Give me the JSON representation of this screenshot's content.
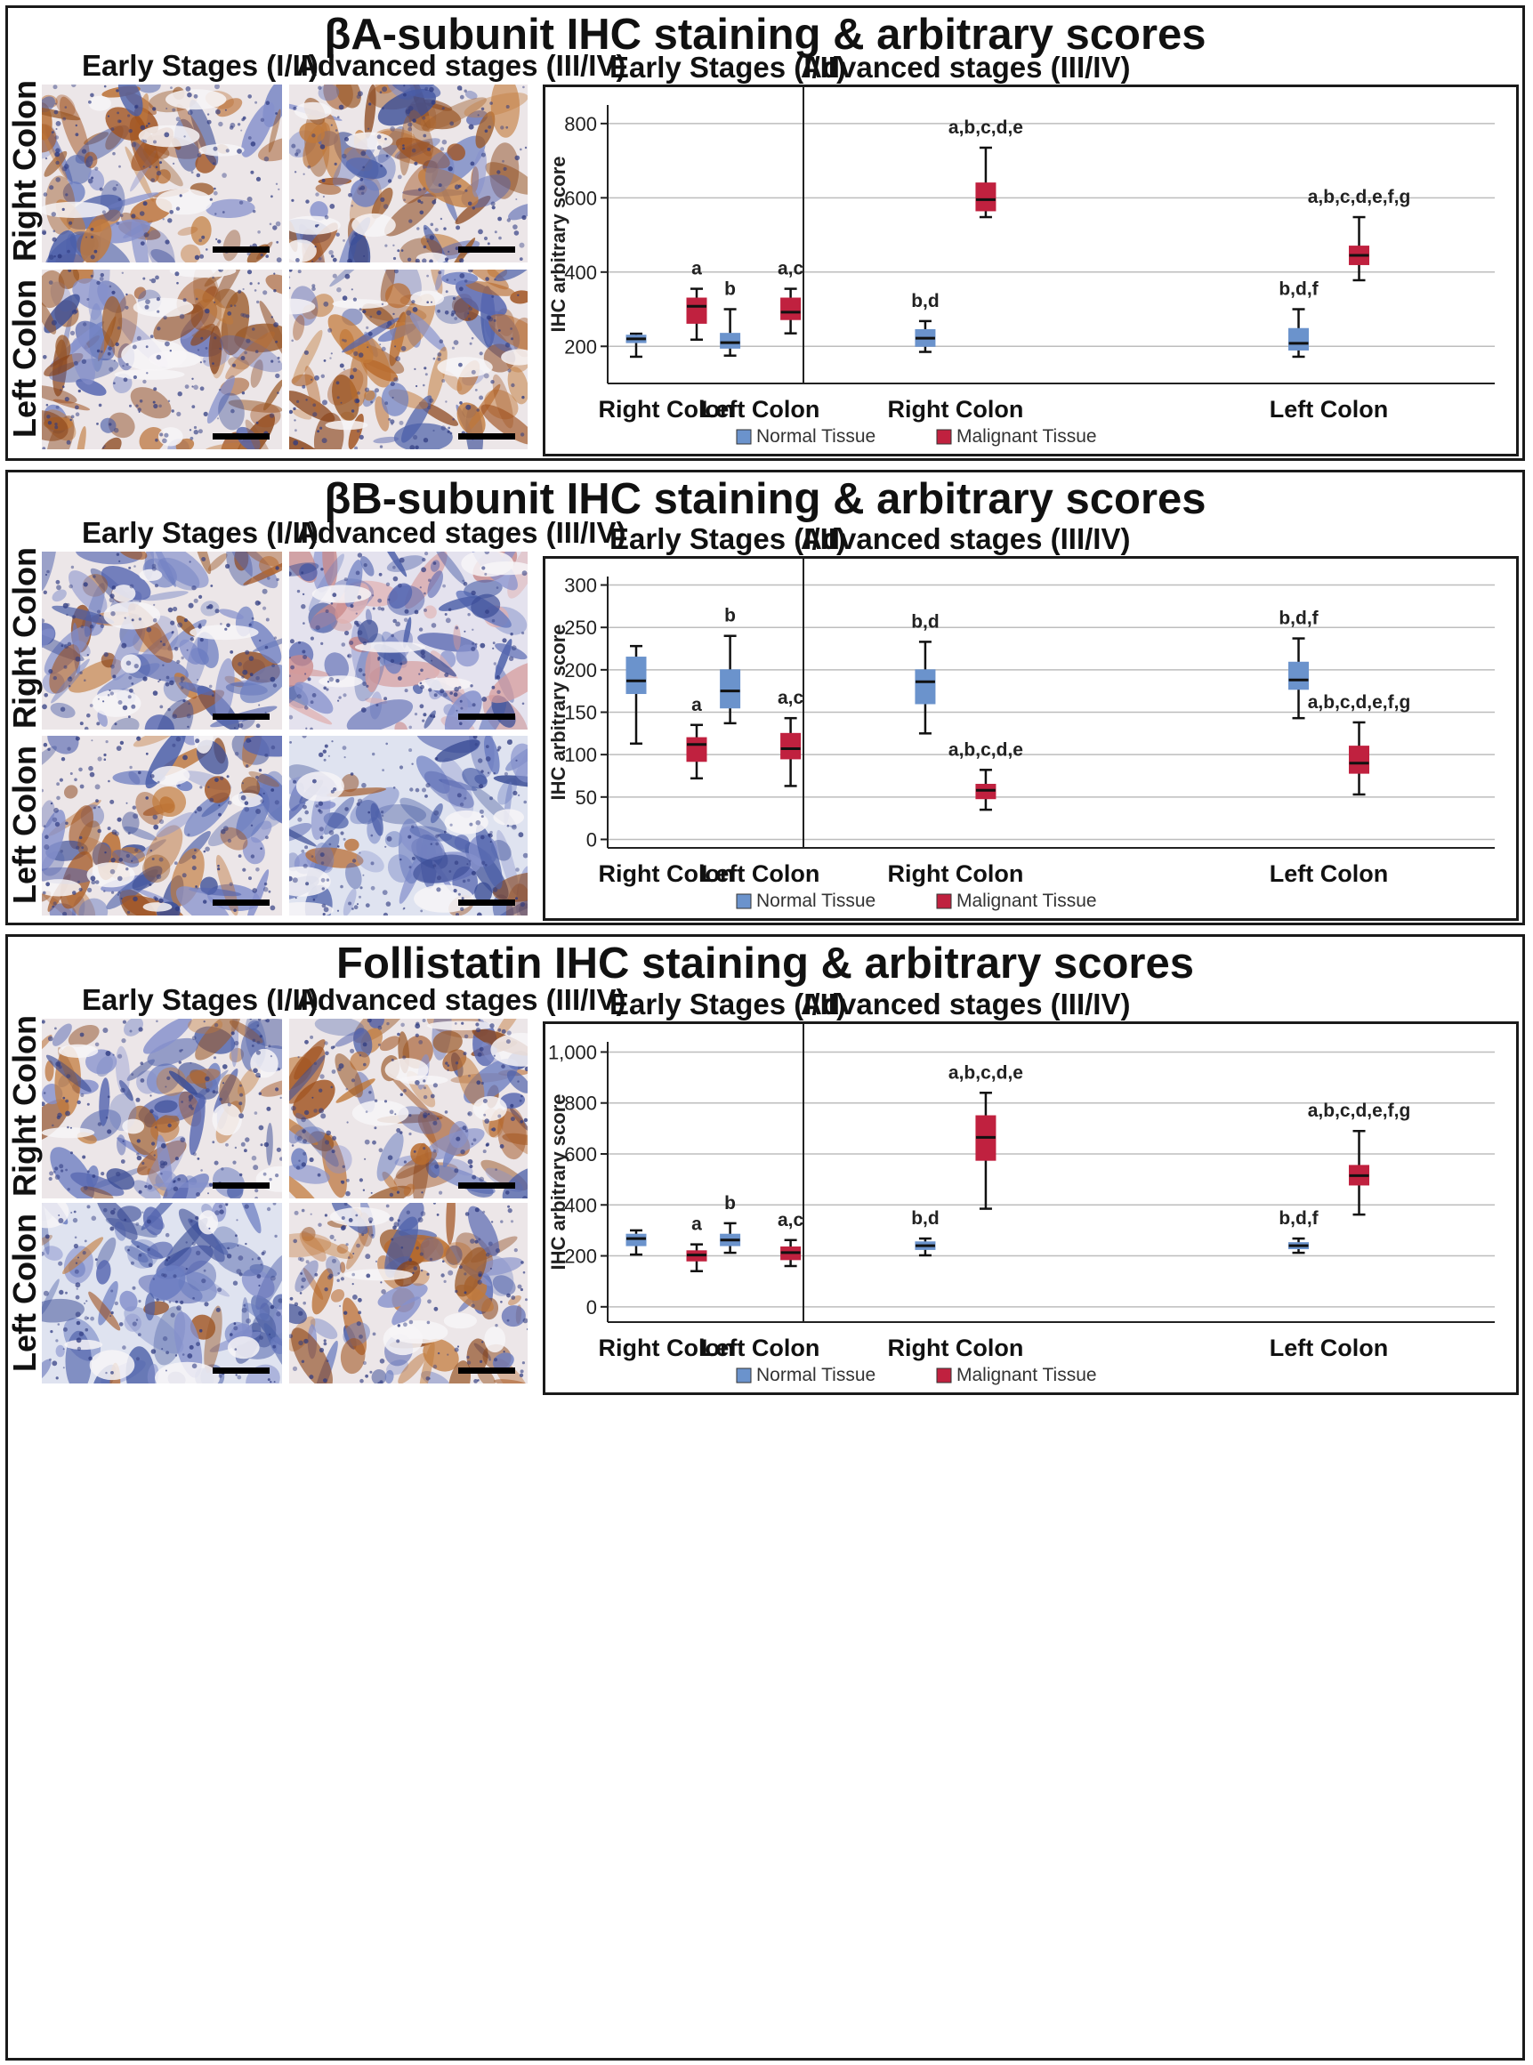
{
  "colors": {
    "normal": "#6b93cc",
    "malignant": "#c0213f",
    "border": "#1a1a1a",
    "gridline": "#bdbdbd"
  },
  "image_columns": {
    "early": "Early Stages (I/II)",
    "advanced": "Advanced stages (III/IV)"
  },
  "image_rows": {
    "right": "Right Colon",
    "left": "Left Colon"
  },
  "panels": [
    {
      "title": "βA-subunit IHC staining & arbitrary scores",
      "tiles": [
        {
          "name": "right-early",
          "stain": "brown-heavy"
        },
        {
          "name": "right-advanced",
          "stain": "brown-heavy"
        },
        {
          "name": "left-early",
          "stain": "brown-heavy"
        },
        {
          "name": "left-advanced",
          "stain": "brown-heavy"
        }
      ]
    },
    {
      "title": "βB-subunit IHC staining & arbitrary scores",
      "tiles": [
        {
          "name": "right-early",
          "stain": "mixed"
        },
        {
          "name": "right-advanced",
          "stain": "blue-pink"
        },
        {
          "name": "left-early",
          "stain": "mixed"
        },
        {
          "name": "left-advanced",
          "stain": "blue"
        }
      ]
    },
    {
      "title": "Follistatin IHC staining & arbitrary scores",
      "tiles": [
        {
          "name": "right-early",
          "stain": "mixed"
        },
        {
          "name": "right-advanced",
          "stain": "brown-heavy"
        },
        {
          "name": "left-early",
          "stain": "blue"
        },
        {
          "name": "left-advanced",
          "stain": "brown-heavy"
        }
      ]
    }
  ],
  "chart_data": [
    {
      "type": "box",
      "panel_titles": [
        "Early Stages (I/II)",
        "Advanced stages (III/IV)"
      ],
      "ylabel": "IHC arbitrary score",
      "ylim": [
        100,
        850
      ],
      "yticks": [
        200,
        400,
        600,
        800
      ],
      "ytick_labels": [
        "200",
        "400",
        "600",
        "800"
      ],
      "grid": true,
      "x_groups": [
        "Right Colon",
        "Left Colon",
        "Right Colon",
        "Left Colon"
      ],
      "legend": [
        "Normal Tissue",
        "Malignant Tissue"
      ],
      "legend_position": "bottom",
      "boxes": [
        {
          "group": 0,
          "series": "Normal Tissue",
          "min": 172,
          "q1": 210,
          "median": 220,
          "q3": 230,
          "max": 234,
          "label": ""
        },
        {
          "group": 0,
          "series": "Malignant Tissue",
          "min": 218,
          "q1": 262,
          "median": 308,
          "q3": 330,
          "max": 355,
          "label": "a"
        },
        {
          "group": 1,
          "series": "Normal Tissue",
          "min": 175,
          "q1": 195,
          "median": 210,
          "q3": 235,
          "max": 300,
          "label": "b"
        },
        {
          "group": 1,
          "series": "Malignant Tissue",
          "min": 235,
          "q1": 272,
          "median": 292,
          "q3": 330,
          "max": 355,
          "label": "a,c"
        },
        {
          "group": 2,
          "series": "Normal Tissue",
          "min": 185,
          "q1": 200,
          "median": 222,
          "q3": 245,
          "max": 268,
          "label": "b,d"
        },
        {
          "group": 2,
          "series": "Malignant Tissue",
          "min": 548,
          "q1": 565,
          "median": 595,
          "q3": 640,
          "max": 735,
          "label": "a,b,c,d,e"
        },
        {
          "group": 3,
          "series": "Normal Tissue",
          "min": 172,
          "q1": 190,
          "median": 208,
          "q3": 248,
          "max": 300,
          "label": "b,d,f"
        },
        {
          "group": 3,
          "series": "Malignant Tissue",
          "min": 378,
          "q1": 420,
          "median": 445,
          "q3": 470,
          "max": 548,
          "label": "a,b,c,d,e,f,g"
        }
      ]
    },
    {
      "type": "box",
      "panel_titles": [
        "Early Stages (I/II)",
        "Advanced stages (III/IV)"
      ],
      "ylabel": "IHC arbitrary score",
      "ylim": [
        -10,
        310
      ],
      "yticks": [
        0,
        50,
        100,
        150,
        200,
        250,
        300
      ],
      "ytick_labels": [
        "0",
        "50",
        "100",
        "150",
        "200",
        "250",
        "300"
      ],
      "grid": true,
      "x_groups": [
        "Right Colon",
        "Left Colon",
        "Right Colon",
        "Left Colon"
      ],
      "legend": [
        "Normal Tissue",
        "Malignant Tissue"
      ],
      "legend_position": "bottom",
      "boxes": [
        {
          "group": 0,
          "series": "Normal Tissue",
          "min": 113,
          "q1": 172,
          "median": 187,
          "q3": 215,
          "max": 228,
          "label": ""
        },
        {
          "group": 0,
          "series": "Malignant Tissue",
          "min": 72,
          "q1": 92,
          "median": 112,
          "q3": 120,
          "max": 135,
          "label": "a"
        },
        {
          "group": 1,
          "series": "Normal Tissue",
          "min": 137,
          "q1": 155,
          "median": 175,
          "q3": 200,
          "max": 240,
          "label": "b"
        },
        {
          "group": 1,
          "series": "Malignant Tissue",
          "min": 63,
          "q1": 95,
          "median": 107,
          "q3": 125,
          "max": 143,
          "label": "a,c"
        },
        {
          "group": 2,
          "series": "Normal Tissue",
          "min": 125,
          "q1": 160,
          "median": 186,
          "q3": 200,
          "max": 233,
          "label": "b,d"
        },
        {
          "group": 2,
          "series": "Malignant Tissue",
          "min": 35,
          "q1": 48,
          "median": 58,
          "q3": 65,
          "max": 82,
          "label": "a,b,c,d,e"
        },
        {
          "group": 3,
          "series": "Normal Tissue",
          "min": 143,
          "q1": 177,
          "median": 188,
          "q3": 209,
          "max": 237,
          "label": "b,d,f"
        },
        {
          "group": 3,
          "series": "Malignant Tissue",
          "min": 53,
          "q1": 78,
          "median": 90,
          "q3": 110,
          "max": 138,
          "label": "a,b,c,d,e,f,g"
        }
      ]
    },
    {
      "type": "box",
      "panel_titles": [
        "Early Stages (I/II)",
        "Advanced stages (III/IV)"
      ],
      "ylabel": "IHC arbitrary score",
      "ylim": [
        -60,
        1040
      ],
      "yticks": [
        0,
        200,
        400,
        600,
        800,
        1000
      ],
      "ytick_labels": [
        "0",
        "200",
        "400",
        "600",
        "800",
        "1,000"
      ],
      "grid": true,
      "x_groups": [
        "Right Colon",
        "Left Colon",
        "Right Colon",
        "Left Colon"
      ],
      "legend": [
        "Normal Tissue",
        "Malignant Tissue"
      ],
      "legend_position": "bottom",
      "boxes": [
        {
          "group": 0,
          "series": "Normal Tissue",
          "min": 205,
          "q1": 240,
          "median": 268,
          "q3": 285,
          "max": 300,
          "label": ""
        },
        {
          "group": 0,
          "series": "Malignant Tissue",
          "min": 140,
          "q1": 180,
          "median": 203,
          "q3": 220,
          "max": 245,
          "label": "a"
        },
        {
          "group": 1,
          "series": "Normal Tissue",
          "min": 212,
          "q1": 240,
          "median": 262,
          "q3": 285,
          "max": 328,
          "label": "b"
        },
        {
          "group": 1,
          "series": "Malignant Tissue",
          "min": 160,
          "q1": 185,
          "median": 213,
          "q3": 235,
          "max": 262,
          "label": "a,c"
        },
        {
          "group": 2,
          "series": "Normal Tissue",
          "min": 202,
          "q1": 225,
          "median": 240,
          "q3": 255,
          "max": 268,
          "label": "b,d"
        },
        {
          "group": 2,
          "series": "Malignant Tissue",
          "min": 385,
          "q1": 575,
          "median": 665,
          "q3": 750,
          "max": 840,
          "label": "a,b,c,d,e"
        },
        {
          "group": 3,
          "series": "Normal Tissue",
          "min": 212,
          "q1": 228,
          "median": 240,
          "q3": 252,
          "max": 268,
          "label": "b,d,f"
        },
        {
          "group": 3,
          "series": "Malignant Tissue",
          "min": 362,
          "q1": 478,
          "median": 515,
          "q3": 555,
          "max": 690,
          "label": "a,b,c,d,e,f,g"
        }
      ]
    }
  ]
}
